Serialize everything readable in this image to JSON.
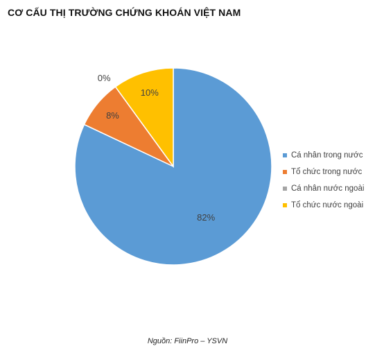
{
  "title": "CƠ CẤU THỊ TRƯỜNG CHỨNG KHOÁN VIỆT NAM",
  "source": "Nguồn: FiinPro – YSVN",
  "chart_data": {
    "type": "pie",
    "title": "CƠ CẤU THỊ TRƯỜNG CHỨNG KHOÁN VIỆT NAM",
    "legend_position": "right",
    "slices": [
      {
        "name": "Cá nhân trong nước",
        "value": 82,
        "label": "82%",
        "color": "#5b9bd5"
      },
      {
        "name": "Tổ chức trong nước",
        "value": 8,
        "label": "8%",
        "color": "#ed7d31"
      },
      {
        "name": "Cá nhân nước ngoài",
        "value": 0,
        "label": "0%",
        "color": "#a5a5a5"
      },
      {
        "name": "Tổ chức nước ngoài",
        "value": 10,
        "label": "10%",
        "color": "#ffc000"
      }
    ]
  }
}
